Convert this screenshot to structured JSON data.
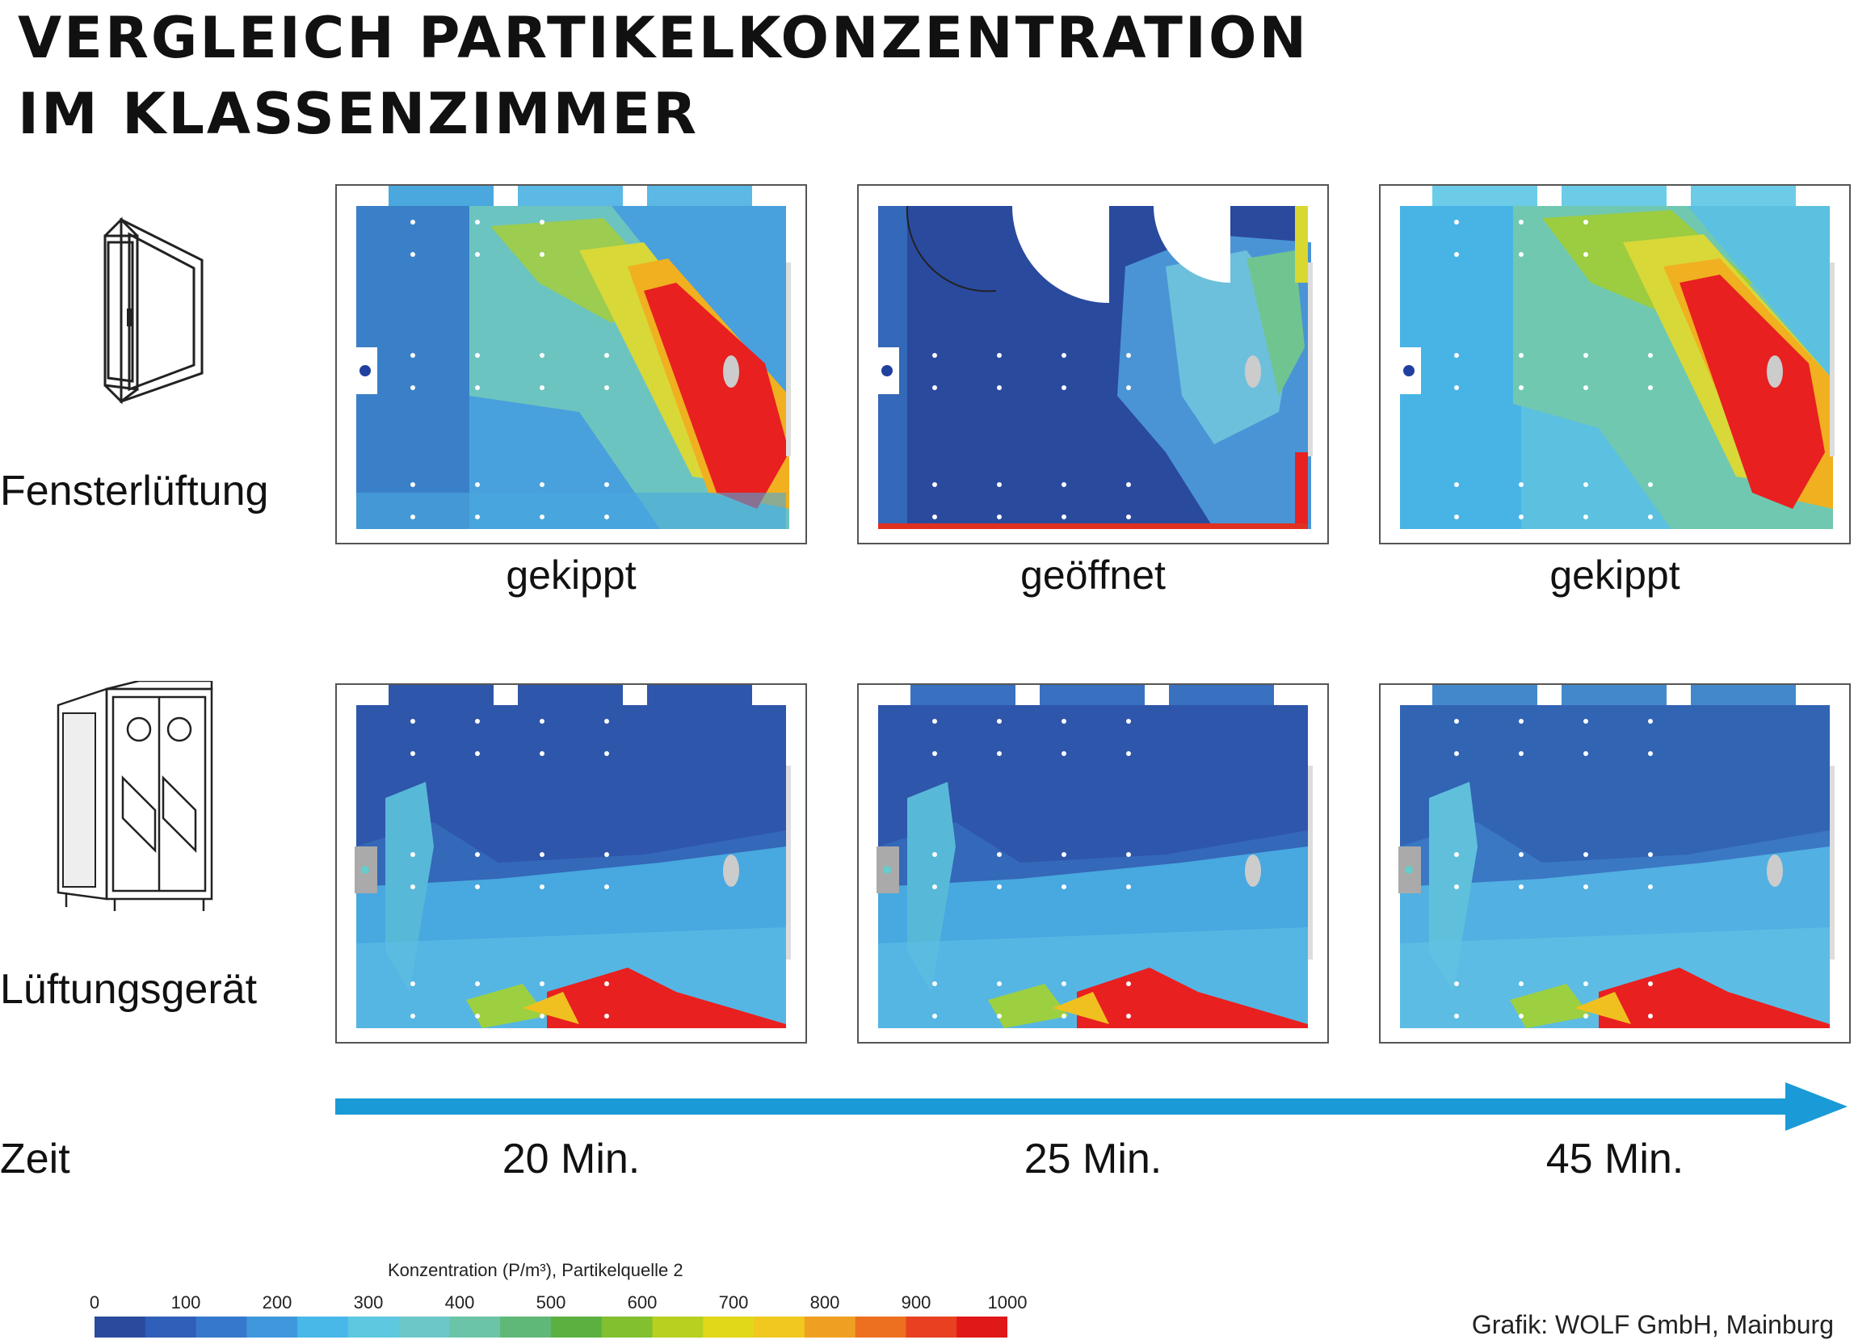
{
  "title": {
    "line1": "VERGLEICH PARTIKELKONZENTRATION",
    "line2": "IM KLASSENZIMMER"
  },
  "rows": [
    {
      "label": "Fensterlüftung",
      "icon": "window-icon"
    },
    {
      "label": "Lüftungsgerät",
      "icon": "ventilation-unit-icon"
    }
  ],
  "captions": [
    "gekippt",
    "geöffnet",
    "gekippt"
  ],
  "time": {
    "label": "Zeit",
    "steps": [
      "20 Min.",
      "25 Min.",
      "45 Min."
    ]
  },
  "legend": {
    "title": "Konzentration (P/m³), Partikelquelle 2",
    "ticks": [
      "0",
      "100",
      "200",
      "300",
      "400",
      "500",
      "600",
      "700",
      "800",
      "900",
      "1000"
    ],
    "colors": [
      "#2a4a9e",
      "#2f5fb8",
      "#3578cc",
      "#3f98dc",
      "#48b8e8",
      "#5ec8e0",
      "#6cc8c8",
      "#6cc4a8",
      "#60b878",
      "#5cb040",
      "#82c030",
      "#b8d020",
      "#e0d818",
      "#f0c820",
      "#f0a020",
      "#ec7020",
      "#e84020",
      "#e01818"
    ]
  },
  "credit": "Grafik: WOLF GmbH, Mainburg"
}
